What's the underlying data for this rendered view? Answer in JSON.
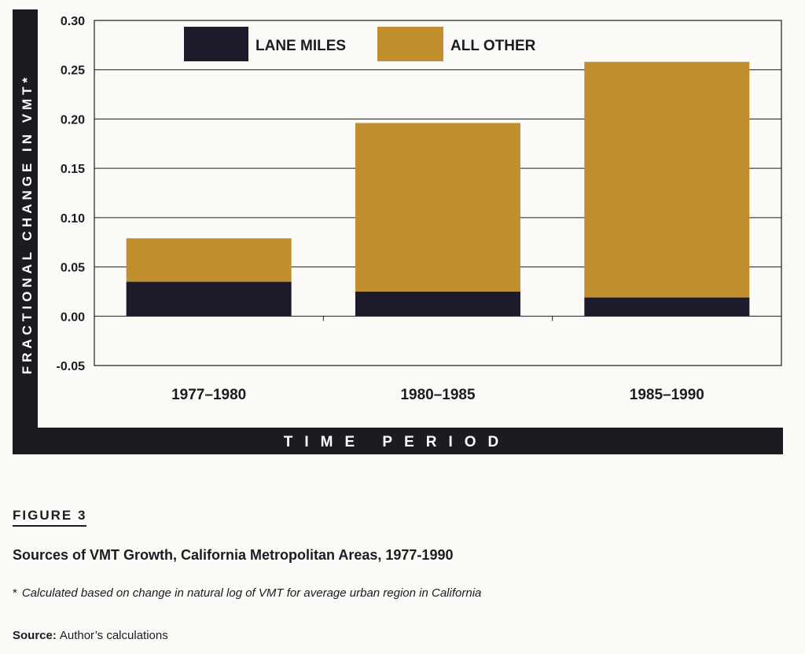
{
  "colors": {
    "lane_miles": "#1d1a2b",
    "all_other": "#c18f2f",
    "frame": "#1c1b22"
  },
  "chart_data": {
    "type": "bar",
    "stacked": true,
    "categories": [
      "1977–1980",
      "1980–1985",
      "1985–1990"
    ],
    "series": [
      {
        "name": "LANE MILES",
        "values": [
          0.035,
          0.025,
          0.019
        ]
      },
      {
        "name": "ALL OTHER",
        "values": [
          0.044,
          0.171,
          0.239
        ]
      }
    ],
    "yticks": [
      "0.30",
      "0.25",
      "0.20",
      "0.15",
      "0.10",
      "0.05",
      "0.00",
      "-0.05"
    ],
    "ylim": [
      -0.05,
      0.3
    ],
    "ylabel": "FRACTIONAL CHANGE IN VMT*",
    "xlabel": "TIME PERIOD",
    "grid": true,
    "legend_position": "top"
  },
  "figure": {
    "label": "FIGURE 3",
    "title": "Sources of VMT Growth, California Metropolitan Areas, 1977-1990",
    "footnote_mark": "*",
    "footnote": "Calculated based on change in natural log of VMT for average urban region in California",
    "source_label": "Source:",
    "source_text": "Author’s calculations"
  }
}
